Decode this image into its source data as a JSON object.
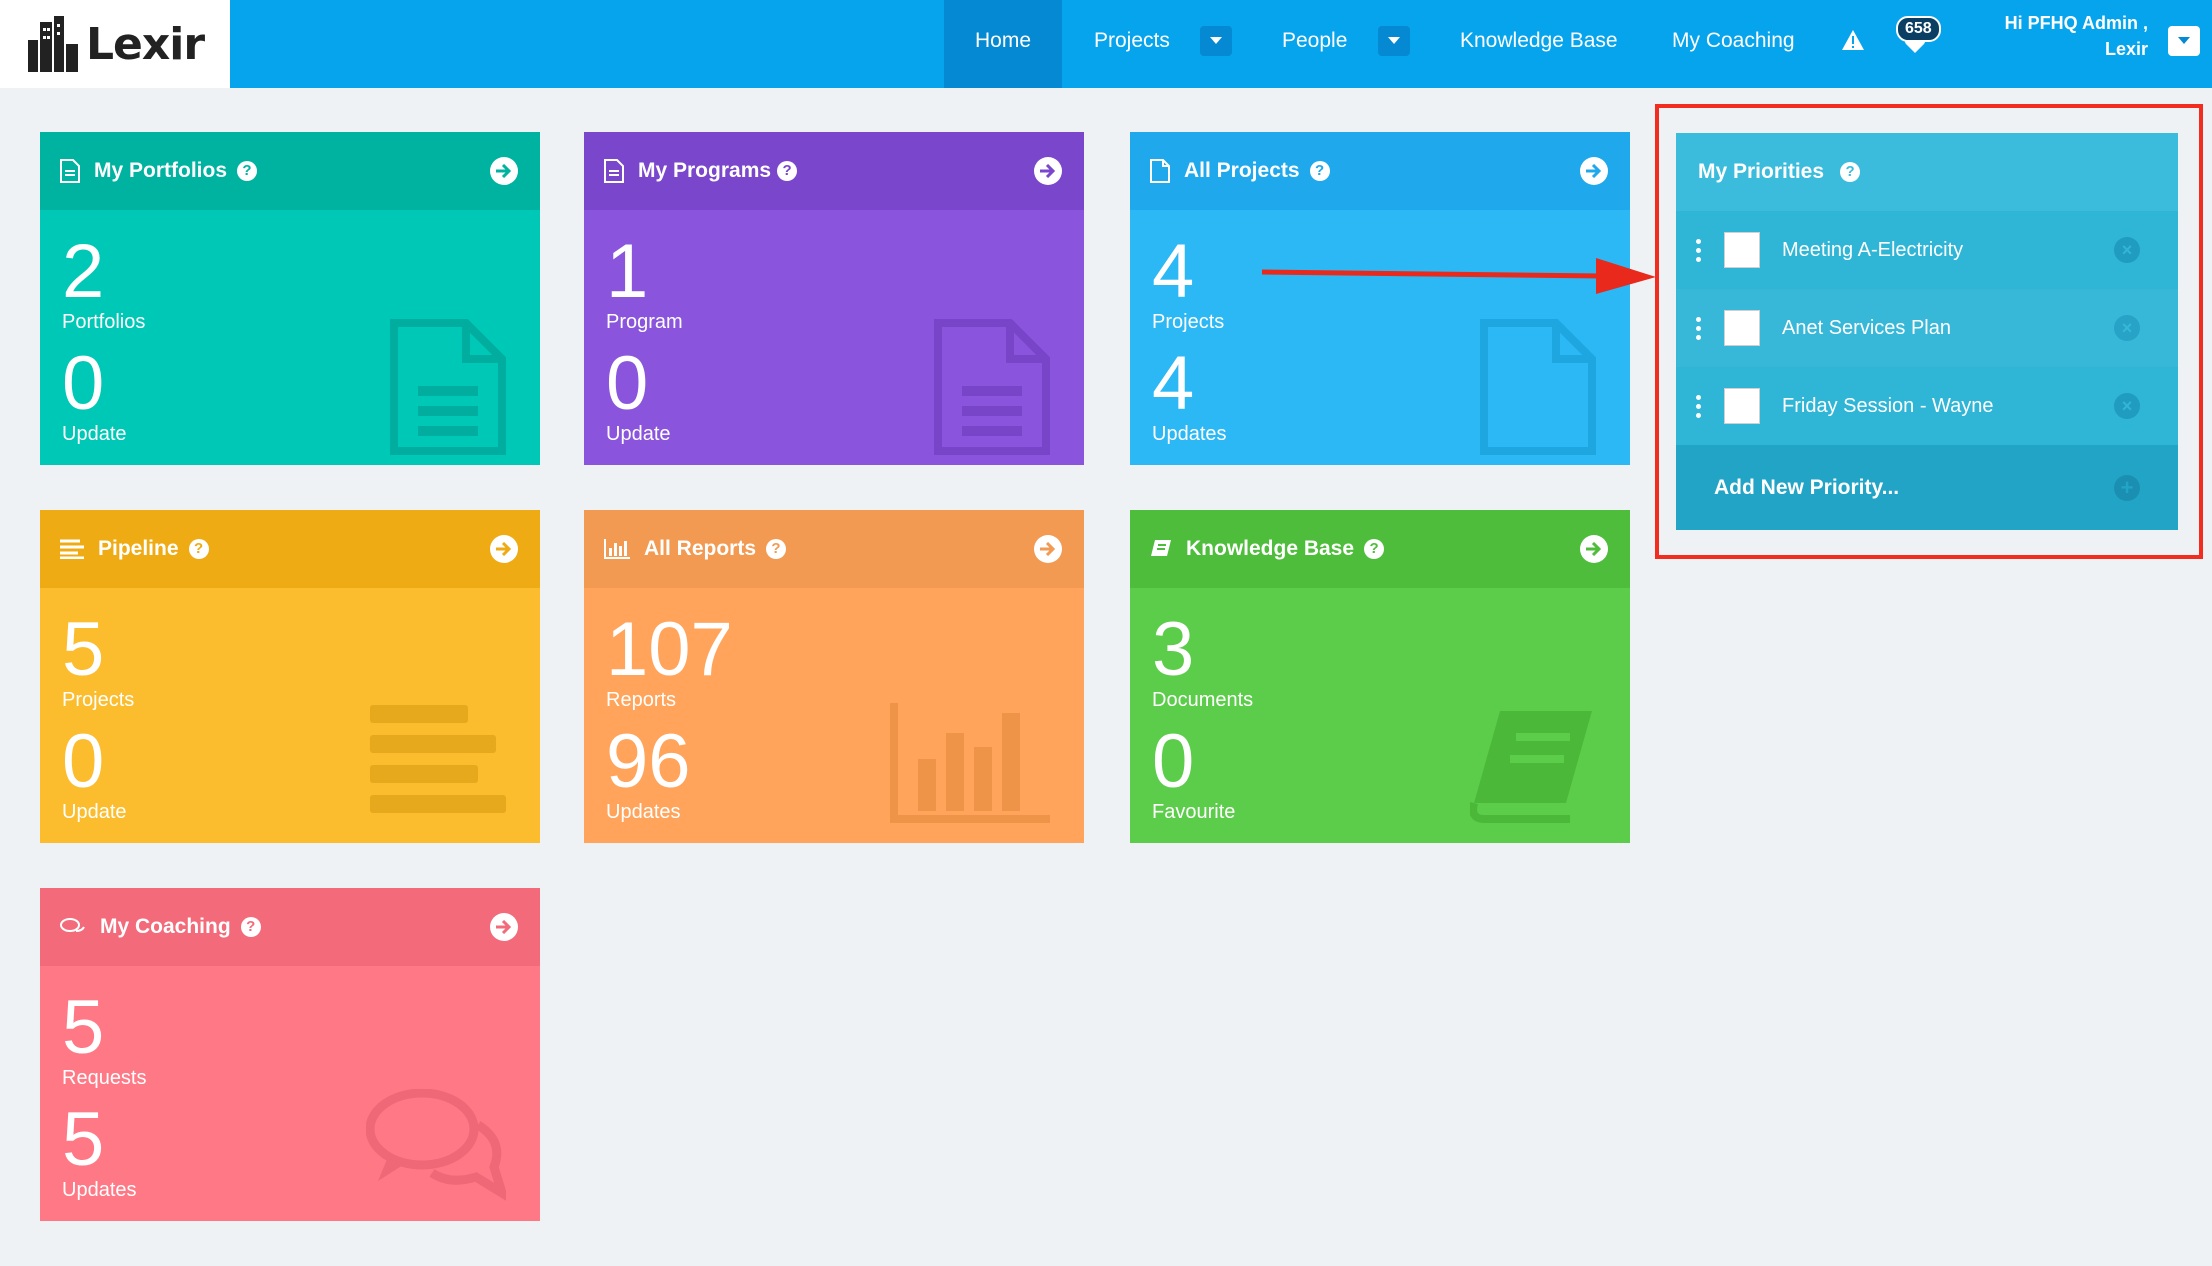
{
  "app": {
    "logo_text": "Lexir"
  },
  "nav": {
    "home": "Home",
    "projects": "Projects",
    "people": "People",
    "knowledge_base": "Knowledge Base",
    "my_coaching": "My Coaching",
    "notifications_count": "658",
    "greeting_line1": "Hi PFHQ Admin ,",
    "greeting_line2": "Lexir"
  },
  "tiles": {
    "portfolios": {
      "title": "My Portfolios",
      "n1": "2",
      "l1": "Portfolios",
      "n2": "0",
      "l2": "Update",
      "color": "#00c8b6",
      "head": "#00b3a0"
    },
    "programs": {
      "title": "My Programs",
      "n1": "1",
      "l1": "Program",
      "n2": "0",
      "l2": "Update",
      "color": "#8a55dc",
      "head": "#7a46cc"
    },
    "projects": {
      "title": "All Projects",
      "n1": "4",
      "l1": "Projects",
      "n2": "4",
      "l2": "Updates",
      "color": "#2bb8f5",
      "head": "#20a8ec"
    },
    "pipeline": {
      "title": "Pipeline",
      "n1": "5",
      "l1": "Projects",
      "n2": "0",
      "l2": "Update",
      "color": "#fbbd2d",
      "head": "#efab14"
    },
    "reports": {
      "title": "All Reports",
      "n1": "107",
      "l1": "Reports",
      "n2": "96",
      "l2": "Updates",
      "color": "#ffa45a",
      "head": "#f29a52"
    },
    "knowledge": {
      "title": "Knowledge Base",
      "n1": "3",
      "l1": "Documents",
      "n2": "0",
      "l2": "Favourite",
      "color": "#5ccd4a",
      "head": "#4fbd3c"
    },
    "coaching": {
      "title": "My Coaching",
      "n1": "5",
      "l1": "Requests",
      "n2": "5",
      "l2": "Updates",
      "color": "#ff7885",
      "head": "#f36b7a"
    }
  },
  "priorities": {
    "title": "My Priorities",
    "items": [
      {
        "label": "Meeting A-Electricity"
      },
      {
        "label": "Anet Services Plan"
      },
      {
        "label": "Friday Session - Wayne"
      }
    ],
    "add_label": "Add New Priority..."
  }
}
